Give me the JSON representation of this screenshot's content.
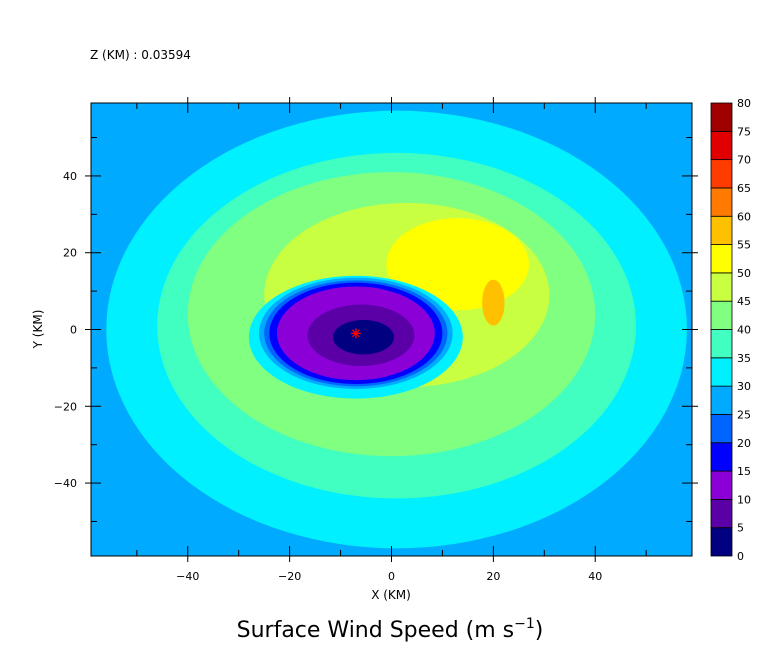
{
  "chart_data": {
    "type": "heatmap",
    "header": "Z (KM) : 0.03594",
    "title": "Surface Wind Speed (m s",
    "title_exponent": "−1",
    "title_close": ")",
    "xlabel": "X (KM)",
    "ylabel": "Y (KM)",
    "xlim": [
      -59,
      59
    ],
    "ylim": [
      -59,
      59
    ],
    "x_ticks": [
      "−40",
      "−20",
      "0",
      "20",
      "40"
    ],
    "y_ticks": [
      "−40",
      "−20",
      "0",
      "20",
      "40"
    ],
    "x_tick_values": [
      -40,
      -20,
      0,
      20,
      40
    ],
    "y_tick_values": [
      -40,
      -20,
      0,
      20,
      40
    ],
    "minor_tick_step": 10,
    "colorbar": {
      "levels": [
        "0",
        "5",
        "10",
        "15",
        "20",
        "25",
        "30",
        "35",
        "40",
        "45",
        "50",
        "55",
        "60",
        "65",
        "70",
        "75",
        "80"
      ],
      "colors": [
        "#000080",
        "#5a00a6",
        "#8c00d8",
        "#0000ff",
        "#0064ff",
        "#00aaff",
        "#00f0ff",
        "#40ffc0",
        "#80ff80",
        "#c8ff40",
        "#ffff00",
        "#ffc000",
        "#ff7a00",
        "#ff3c00",
        "#e00000",
        "#a00000"
      ]
    },
    "storm_center": {
      "x": -7,
      "y": -1,
      "marker": "*",
      "color": "#ff0000"
    },
    "regions": [
      {
        "level": "25-30",
        "color": "#00aaff",
        "cx": 0,
        "cy": 0,
        "rx": 80,
        "ry": 80
      },
      {
        "level": "30-35",
        "color": "#00f0ff",
        "cx": 1,
        "cy": 0,
        "rx": 57,
        "ry": 57
      },
      {
        "level": "35-40",
        "color": "#40ffc0",
        "cx": 1,
        "cy": 1,
        "rx": 47,
        "ry": 45
      },
      {
        "level": "40-45",
        "color": "#80ff80",
        "cx": 0,
        "cy": 4,
        "rx": 40,
        "ry": 37
      },
      {
        "level": "45-50",
        "color": "#c8ff40",
        "cx": 3,
        "cy": 9,
        "rx": 28,
        "ry": 24
      },
      {
        "level": "50-55",
        "color": "#ffff00",
        "cx": 13,
        "cy": 17,
        "rx": 14,
        "ry": 12
      },
      {
        "level": "55-60",
        "color": "#ffc000",
        "cx": 20,
        "cy": 7,
        "rx": 2.2,
        "ry": 6
      },
      {
        "level": "30-35",
        "color": "#00f0ff",
        "cx": -7,
        "cy": -2,
        "rx": 21,
        "ry": 16
      },
      {
        "level": "25-30",
        "color": "#00aaff",
        "cx": -7,
        "cy": -1,
        "rx": 19,
        "ry": 14.5
      },
      {
        "level": "20-25",
        "color": "#0064ff",
        "cx": -7,
        "cy": -1,
        "rx": 18,
        "ry": 13.8
      },
      {
        "level": "15-20",
        "color": "#0000ff",
        "cx": -7,
        "cy": -1,
        "rx": 17,
        "ry": 13.2
      },
      {
        "level": "10-15",
        "color": "#8c00d8",
        "cx": -7,
        "cy": -1,
        "rx": 15.5,
        "ry": 12.2
      },
      {
        "level": "5-10",
        "color": "#5a00a6",
        "cx": -6,
        "cy": -1.5,
        "rx": 10.5,
        "ry": 8
      },
      {
        "level": "0-5",
        "color": "#000080",
        "cx": -5.5,
        "cy": -2,
        "rx": 6,
        "ry": 4.5
      }
    ]
  }
}
